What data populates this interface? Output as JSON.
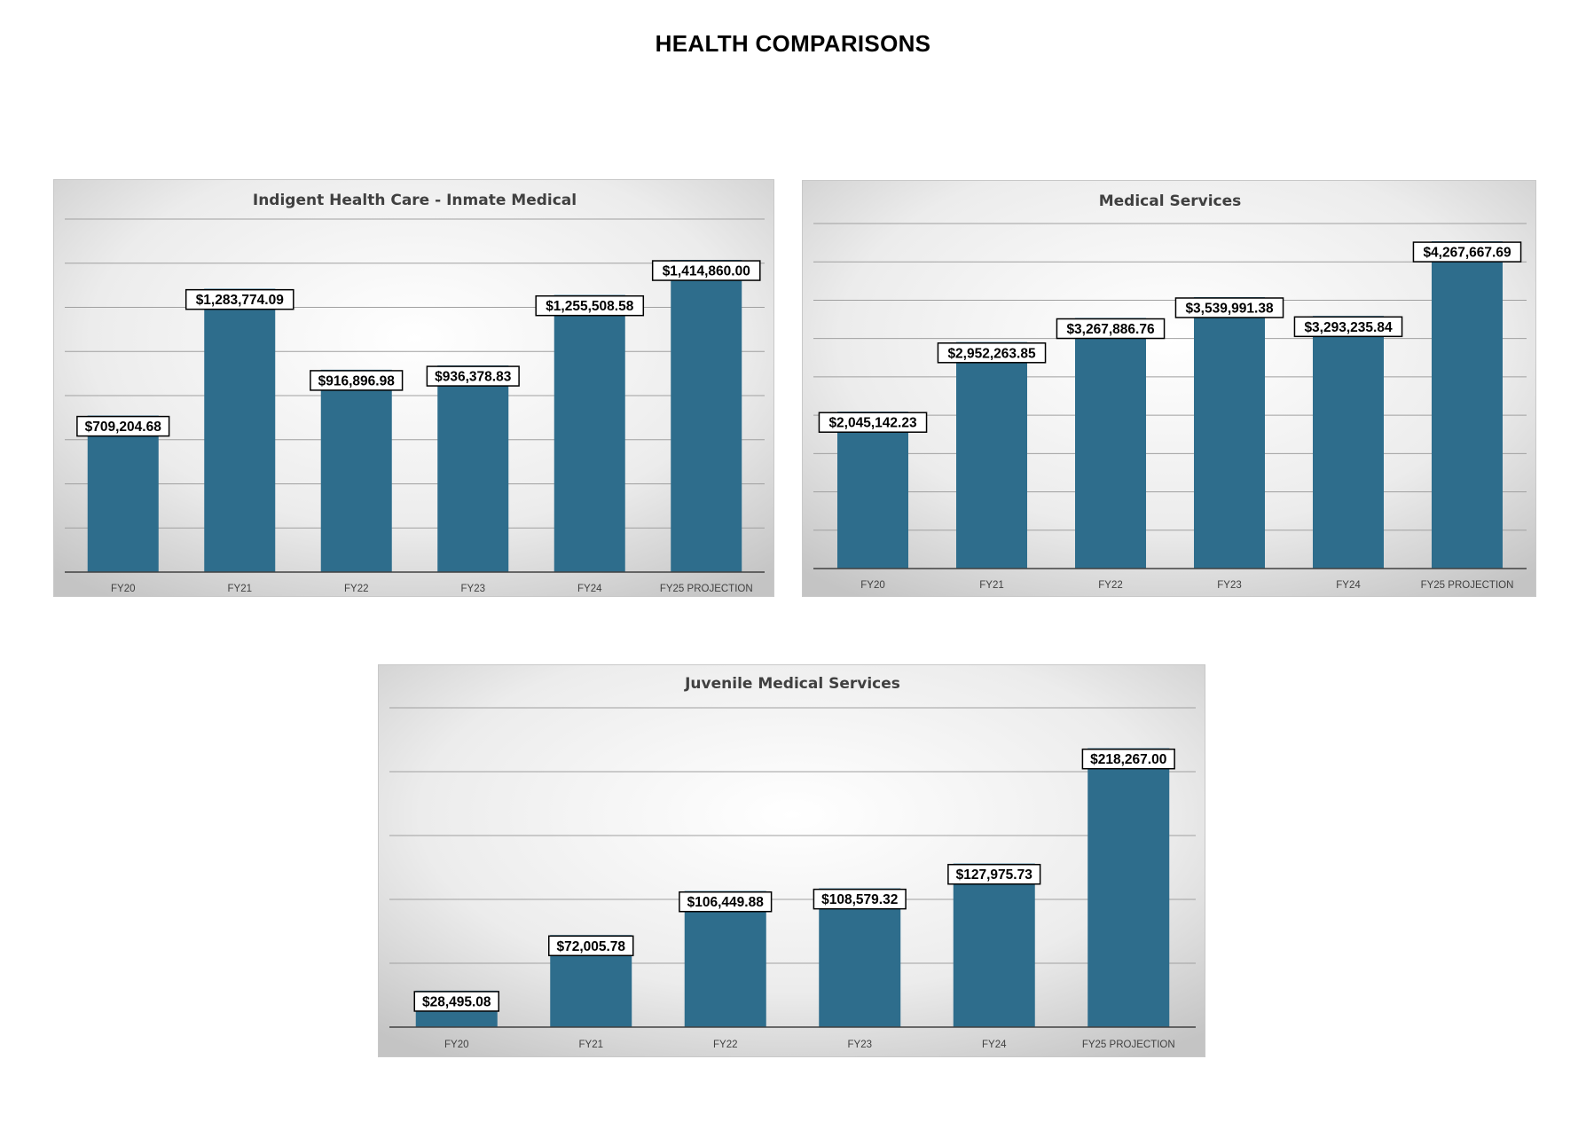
{
  "page": {
    "title": "HEALTH COMPARISONS"
  },
  "colors": {
    "bar": "#2e6d8c",
    "bar_top": "#3d8fba",
    "grid": "#a0a0a0",
    "axis": "#404040"
  },
  "chart_data": [
    {
      "type": "bar",
      "title": "Indigent Health Care - Inmate Medical",
      "categories": [
        "FY20",
        "FY21",
        "FY22",
        "FY23",
        "FY24",
        "FY25 PROJECTION"
      ],
      "values": [
        709204.68,
        1283774.09,
        916896.98,
        936378.83,
        1255508.58,
        1414860.0
      ],
      "labels": [
        "$709,204.68",
        "$1,283,774.09",
        "$916,896.98",
        "$936,378.83",
        "$1,255,508.58",
        "$1,414,860.00"
      ],
      "ylim": [
        0,
        1600000
      ],
      "grid": true,
      "legend": "none"
    },
    {
      "type": "bar",
      "title": "Medical Services",
      "categories": [
        "FY20",
        "FY21",
        "FY22",
        "FY23",
        "FY24",
        "FY25 PROJECTION"
      ],
      "values": [
        2045142.23,
        2952263.85,
        3267886.76,
        3539991.38,
        3293235.84,
        4267667.69
      ],
      "labels": [
        "$2,045,142.23",
        "$2,952,263.85",
        "$3,267,886.76",
        "$3,539,991.38",
        "$3,293,235.84",
        "$4,267,667.69"
      ],
      "ylim": [
        0,
        4500000
      ],
      "grid": true,
      "legend": "none"
    },
    {
      "type": "bar",
      "title": "Juvenile Medical Services",
      "categories": [
        "FY20",
        "FY21",
        "FY22",
        "FY23",
        "FY24",
        "FY25 PROJECTION"
      ],
      "values": [
        28495.08,
        72005.78,
        106449.88,
        108579.32,
        127975.73,
        218267.0
      ],
      "labels": [
        "$28,495.08",
        "$72,005.78",
        "$106,449.88",
        "$108,579.32",
        "$127,975.73",
        "$218,267.00"
      ],
      "ylim": [
        0,
        250000
      ],
      "grid": true,
      "legend": "none"
    }
  ]
}
